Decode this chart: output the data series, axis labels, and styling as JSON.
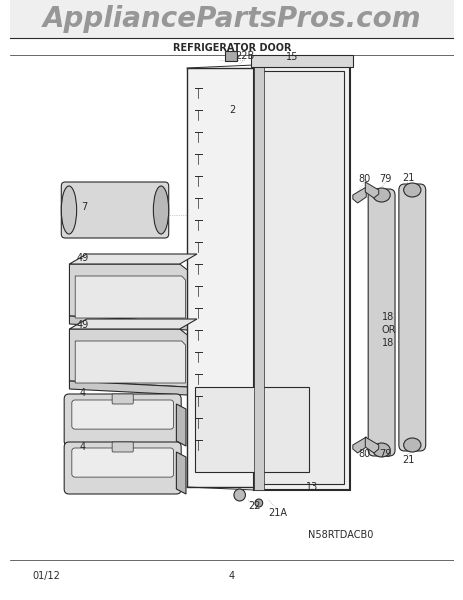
{
  "title": "REFRIGERATOR DOOR",
  "logo_text": "AppliancePartsPros.com",
  "model_number": "N58RTDACB0",
  "date_code": "01/12",
  "page_number": "4",
  "bg": "#ffffff",
  "lc": "#2a2a2a",
  "llc": "#999999",
  "door": {
    "outer_l": 0.42,
    "outer_r": 0.73,
    "outer_b": 0.14,
    "outer_t": 0.86,
    "liner_l": 0.3,
    "liner_r": 0.63,
    "liner_b": 0.15,
    "liner_t": 0.85
  }
}
